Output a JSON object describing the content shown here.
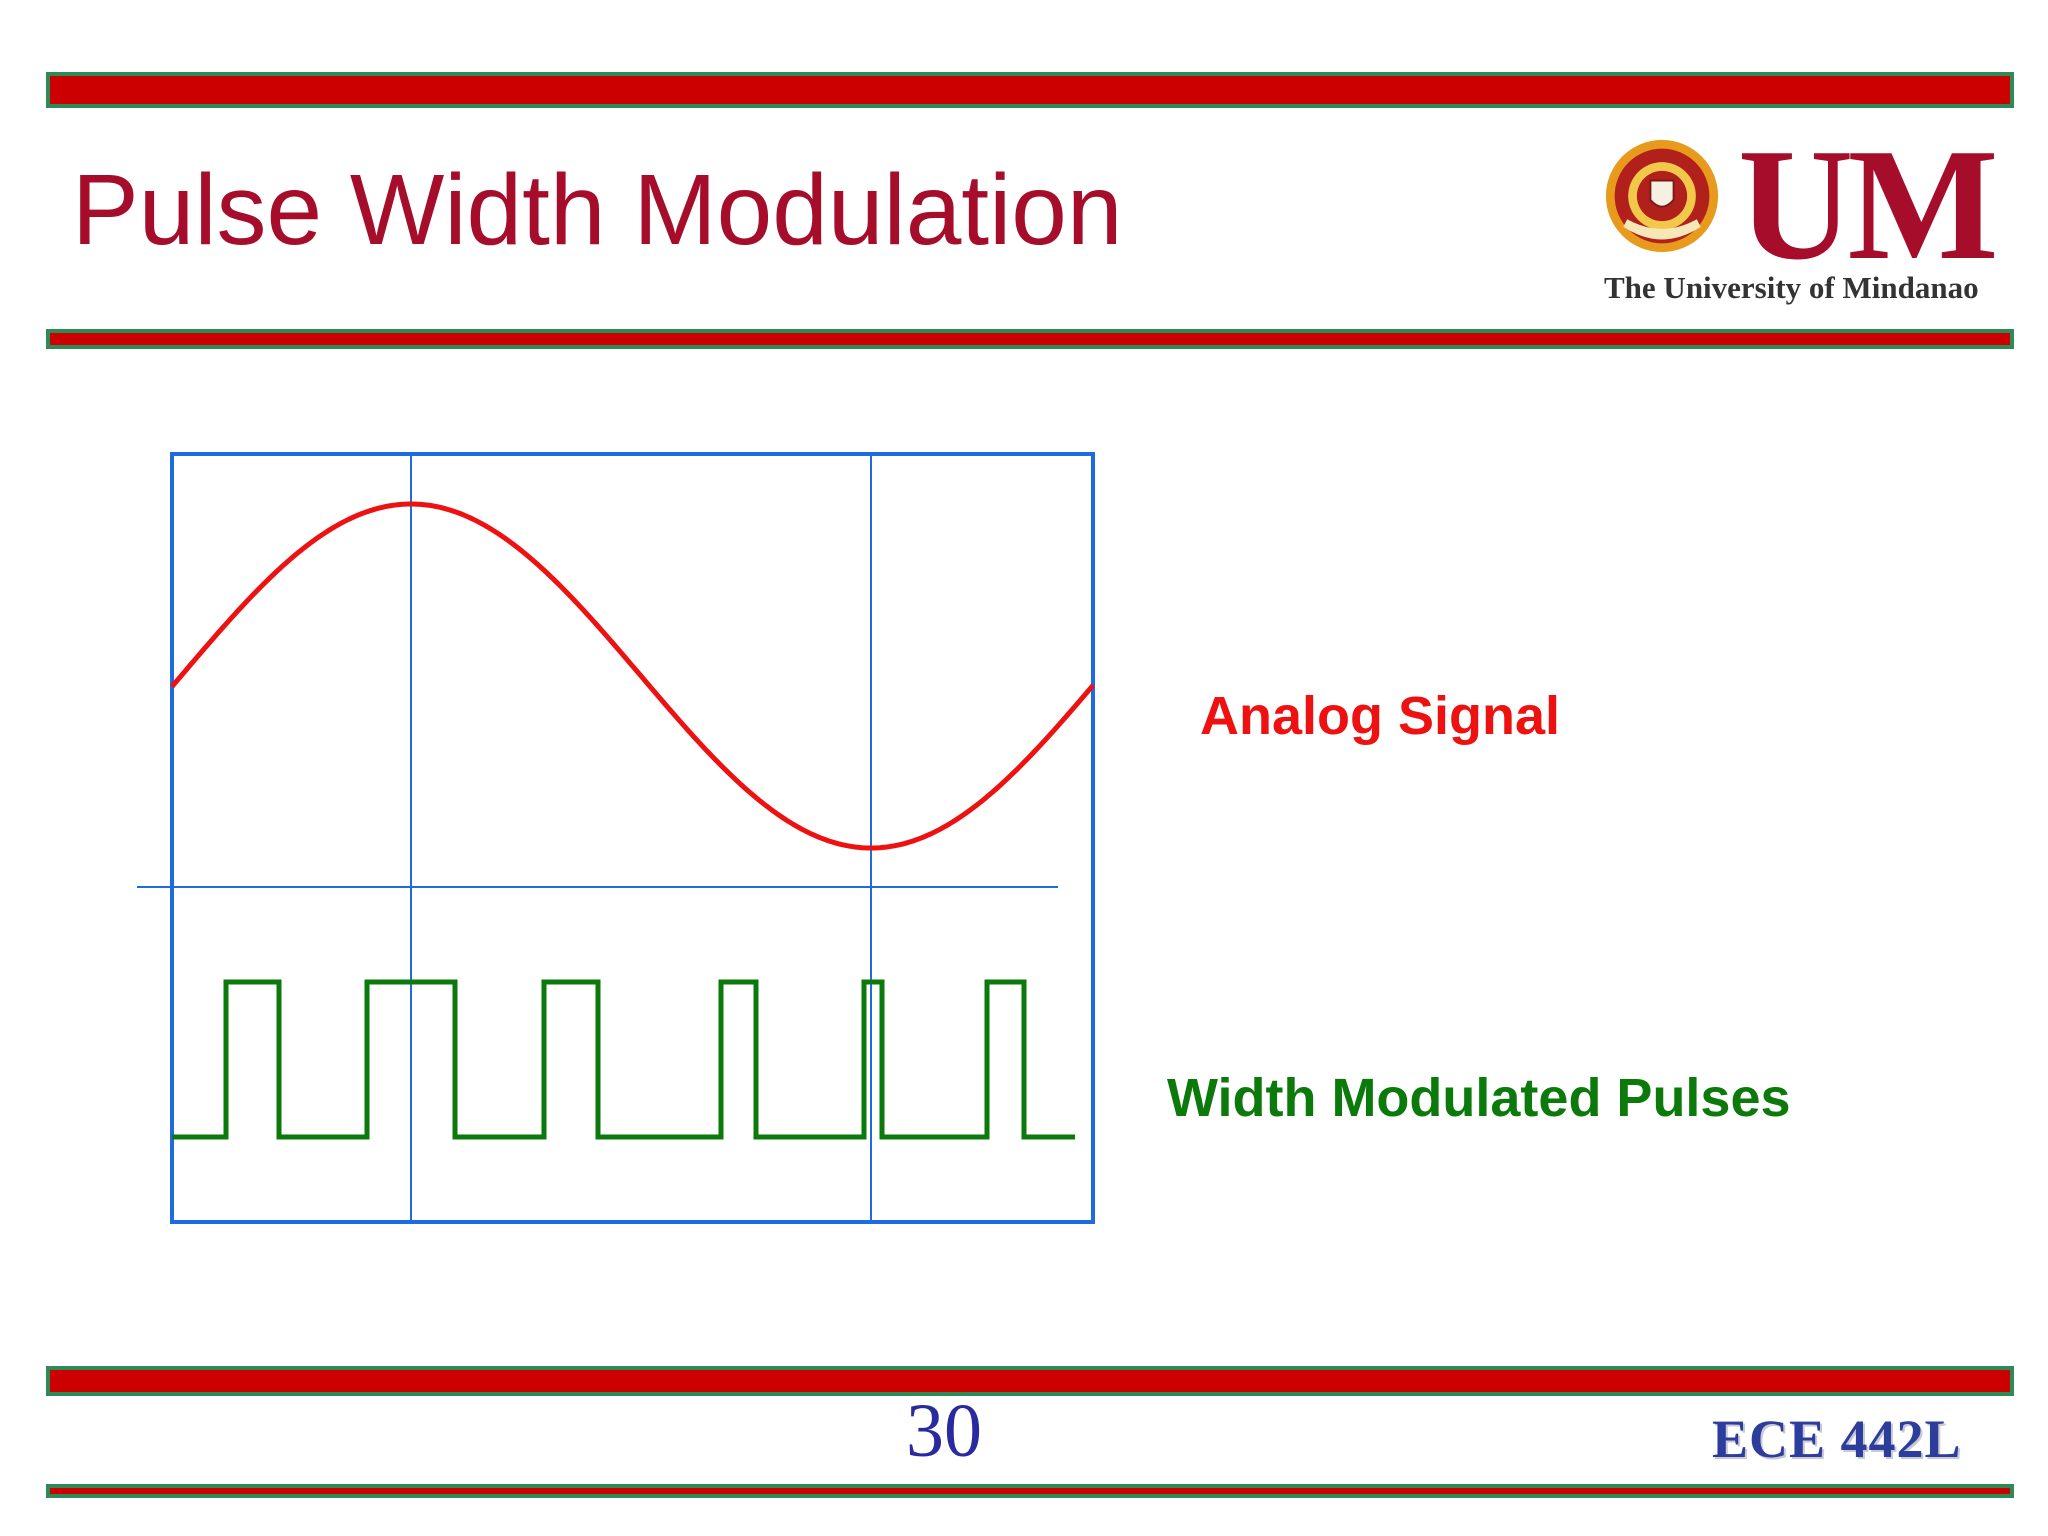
{
  "slide": {
    "title": "Pulse Width Modulation",
    "page_number": "30",
    "course_code": "ECE 442L",
    "accent_colors": {
      "title": "#a50d2b",
      "bar_fill": "#cc0000",
      "bar_border": "#2e8b57",
      "frame": "#1e6be0",
      "analog": "#ee1111",
      "pulses": "#0b7a0b",
      "page_number": "#2a2aa0"
    }
  },
  "logo": {
    "letters": "UM",
    "subtitle": "The University of Mindanao",
    "seal_text": "THE UNIVERSITY OF MINDANAO"
  },
  "diagram": {
    "analog_label": "Analog Signal",
    "pulses_label": "Width Modulated Pulses"
  }
}
